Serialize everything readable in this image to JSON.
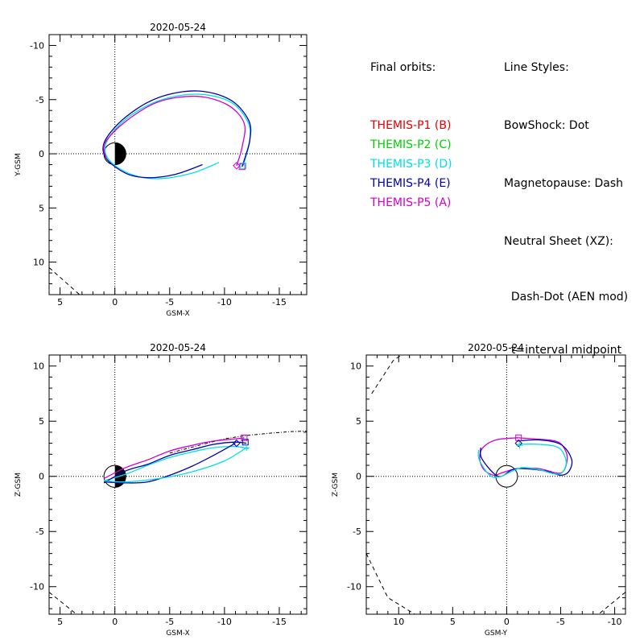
{
  "legend": {
    "final_orbits_title": "Final orbits:",
    "probes": [
      {
        "label": "THEMIS-P1 (B)",
        "color": "#e60000"
      },
      {
        "label": "THEMIS-P2 (C)",
        "color": "#00d000"
      },
      {
        "label": "THEMIS-P3 (D)",
        "color": "#00e0e0"
      },
      {
        "label": "THEMIS-P4 (E)",
        "color": "#0000b0"
      },
      {
        "label": "THEMIS-P5 (A)",
        "color": "#d000d0"
      }
    ]
  },
  "line_styles": {
    "title": "Line Styles:",
    "lines": [
      "BowShock: Dot",
      "Magnetopause: Dash",
      "Neutral Sheet (XZ):",
      "  Dash-Dot (AEN mod)",
      "  t=interval midpoint"
    ]
  },
  "chart_data": [
    {
      "type": "line",
      "title": "2020-05-24",
      "xlabel": "GSM-X",
      "ylabel": "Y-GSM",
      "xlim": [
        6,
        -17.5
      ],
      "ylim": [
        13,
        -11
      ],
      "xticks": [
        5,
        0,
        -5,
        -10,
        -15
      ],
      "yticks": [
        -10,
        -5,
        0,
        5,
        10
      ],
      "earth": {
        "radius": 1,
        "night_side": "negative_x"
      },
      "magnetopause": [
        [
          6,
          10.5
        ],
        [
          3,
          13.2
        ]
      ],
      "series": [
        {
          "probe": "P3",
          "color": "#00e0e0",
          "x": [
            -9.5,
            -7,
            -4,
            -1.5,
            0.5,
            0.8,
            -1,
            -4,
            -7.5,
            -10.5,
            -12.1,
            -12.3,
            -11.7
          ],
          "y": [
            0.8,
            1.8,
            2.3,
            1.9,
            0.6,
            -1,
            -3.2,
            -4.9,
            -5.5,
            -4.8,
            -3.0,
            -1.2,
            1.1
          ]
        },
        {
          "probe": "P4",
          "color": "#0000b0",
          "x": [
            -8,
            -5.5,
            -3,
            -1,
            0.8,
            0.9,
            -1,
            -4,
            -7.5,
            -10.5,
            -12.2,
            -12.3,
            -11.6
          ],
          "y": [
            1.0,
            1.9,
            2.2,
            1.8,
            0.4,
            -1.2,
            -3.4,
            -5.2,
            -5.8,
            -5.0,
            -3.1,
            -1.2,
            1.2
          ]
        },
        {
          "probe": "P5",
          "color": "#d000d0",
          "x": [
            0.8,
            0.9,
            -1,
            -4,
            -7.5,
            -10.3,
            -11.8,
            -11.6,
            -11.1
          ],
          "y": [
            0.4,
            -1.0,
            -3.0,
            -4.8,
            -5.3,
            -4.5,
            -2.8,
            -0.6,
            1.1
          ]
        }
      ],
      "end_markers": [
        {
          "shape": "diamond",
          "color": "#d000d0",
          "x": -11.1,
          "y": 1.1
        },
        {
          "shape": "square",
          "color": "#00e0e0",
          "x": -11.7,
          "y": 1.1
        },
        {
          "shape": "square",
          "color": "#d000d0",
          "x": -11.6,
          "y": 1.2
        }
      ]
    },
    {
      "type": "line",
      "title": "2020-05-24",
      "xlabel": "GSM-X",
      "ylabel": "Z-GSM",
      "xlim": [
        6,
        -17.5
      ],
      "ylim": [
        -12.5,
        11
      ],
      "xticks": [
        5,
        0,
        -5,
        -10,
        -15
      ],
      "yticks": [
        -10,
        -5,
        0,
        5,
        10
      ],
      "earth": {
        "radius": 1,
        "night_side": "negative_x"
      },
      "magnetopause": [
        [
          6,
          -10.5
        ],
        [
          3.5,
          -12.5
        ]
      ],
      "neutral_sheet": {
        "x": [
          -5,
          -8,
          -10,
          -12,
          -14,
          -16,
          -17.5
        ],
        "z": [
          2.1,
          2.9,
          3.4,
          3.7,
          3.9,
          4.05,
          4.1
        ]
      },
      "series": [
        {
          "probe": "P3",
          "color": "#00e0e0",
          "x": [
            1.0,
            -1,
            -3,
            -5,
            -7,
            -9,
            -11,
            -12.2
          ],
          "z": [
            -0.4,
            0.2,
            1.0,
            1.7,
            2.2,
            2.6,
            2.7,
            2.5
          ]
        },
        {
          "probe": "P4",
          "color": "#0000b0",
          "x": [
            1.0,
            -1,
            -3,
            -5,
            -7,
            -9,
            -11,
            -12
          ],
          "z": [
            -0.6,
            0.5,
            1.1,
            1.9,
            2.4,
            2.9,
            3.1,
            3.0
          ]
        },
        {
          "probe": "P5",
          "color": "#d000d0",
          "x": [
            1.0,
            -1,
            -3,
            -5,
            -7,
            -9,
            -11,
            -11.8
          ],
          "z": [
            -0.2,
            0.8,
            1.5,
            2.3,
            2.8,
            3.2,
            3.4,
            3.5
          ]
        },
        {
          "probe": "P4-return",
          "color": "#0000b0",
          "x": [
            -11,
            -9,
            -7,
            -5,
            -3,
            -1,
            1
          ],
          "z": [
            3.0,
            1.9,
            0.9,
            0.1,
            -0.5,
            -0.6,
            -0.5
          ]
        },
        {
          "probe": "P3-return",
          "color": "#00e0e0",
          "x": [
            -12,
            -10,
            -7,
            -4,
            -1,
            1
          ],
          "z": [
            2.6,
            1.4,
            0.4,
            -0.2,
            -0.5,
            -0.4
          ]
        }
      ],
      "end_markers": [
        {
          "shape": "diamond",
          "color": "#0000b0",
          "x": -11.1,
          "z": 3.0
        },
        {
          "shape": "square",
          "color": "#d000d0",
          "x": -11.8,
          "z": 3.5
        },
        {
          "shape": "square",
          "color": "#0000b0",
          "x": -11.9,
          "z": 3.1
        },
        {
          "shape": "plus",
          "color": "#00e0e0",
          "x": -12.0,
          "z": 2.6
        }
      ]
    },
    {
      "type": "line",
      "title": "2020-05-24",
      "xlabel": "GSM-Y",
      "ylabel": "Z-GSM",
      "xlim": [
        13,
        -11
      ],
      "ylim": [
        -12.5,
        11
      ],
      "xticks": [
        10,
        5,
        0,
        -5,
        -10
      ],
      "yticks": [
        -10,
        -5,
        0,
        5,
        10
      ],
      "earth": {
        "radius": 1,
        "night_side": "none"
      },
      "magnetopause_upper": [
        [
          12.5,
          7.5
        ],
        [
          10.5,
          10.5
        ],
        [
          7.5,
          12.5
        ]
      ],
      "magnetopause_lower": [
        [
          13,
          -7.0
        ],
        [
          11,
          -11
        ],
        [
          8.5,
          -12.5
        ]
      ],
      "magnetopause_right": [
        [
          -11,
          -10.5
        ],
        [
          -8.5,
          -12.5
        ]
      ],
      "series": [
        {
          "probe": "P5",
          "color": "#d000d0",
          "y": [
            -1.0,
            1,
            2.2,
            2.5,
            2.1,
            1.2,
            0.5,
            -1,
            -3,
            -5,
            -5.6,
            -5.3,
            -4.5,
            -2.5,
            -1.0
          ],
          "z": [
            3.5,
            3.3,
            2.6,
            1.6,
            0.6,
            0.1,
            0.3,
            0.7,
            0.7,
            0.3,
            1.5,
            2.6,
            3.2,
            3.4,
            3.5
          ]
        },
        {
          "probe": "P4",
          "color": "#0000b0",
          "y": [
            -1.0,
            -3,
            -5,
            -6,
            -5.8,
            -5,
            -3.5,
            -1.5,
            -0.5,
            0.8,
            2.3,
            2.4
          ],
          "z": [
            3.2,
            3.3,
            2.9,
            1.6,
            0.5,
            0.1,
            0.5,
            0.7,
            0.6,
            0.0,
            1.6,
            2.6
          ]
        },
        {
          "probe": "P3",
          "color": "#00e0e0",
          "y": [
            -1.0,
            -3,
            -4.8,
            -5.5,
            -5.2,
            -4.5,
            -3,
            -1.5,
            -0.8,
            1.2,
            2.5,
            2.6
          ],
          "z": [
            2.9,
            2.9,
            2.6,
            1.4,
            0.4,
            0.2,
            0.6,
            0.8,
            0.6,
            -0.1,
            1.4,
            2.4
          ]
        }
      ],
      "end_markers": [
        {
          "shape": "square",
          "color": "#d000d0",
          "x": -1.1,
          "y": 3.5
        },
        {
          "shape": "diamond",
          "color": "#0000b0",
          "x": -1.1,
          "y": 3.0
        },
        {
          "shape": "plus",
          "color": "#00e0e0",
          "x": -1.2,
          "y": 2.8
        }
      ]
    }
  ]
}
